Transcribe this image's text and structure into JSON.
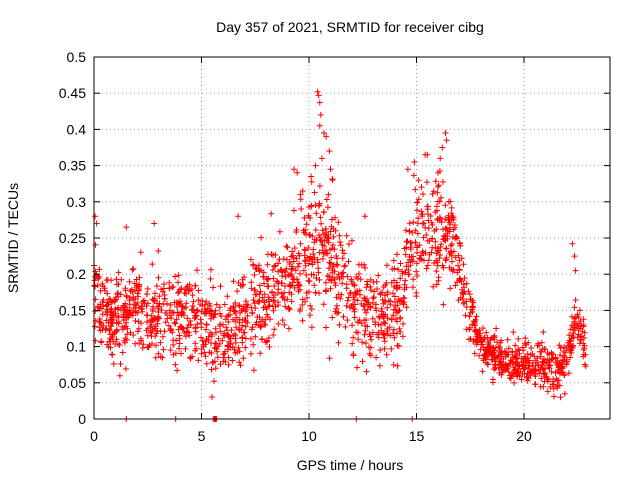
{
  "chart_data": {
    "type": "scatter",
    "marker": "plus",
    "title": "Day 357 of 2021, SRMTID for receiver cibg",
    "xlabel": "GPS time / hours",
    "ylabel": "SRMTID / TECUs",
    "xlim": [
      0,
      24
    ],
    "ylim": [
      0,
      0.5
    ],
    "xticks": [
      0,
      5,
      10,
      15,
      20
    ],
    "xtick_labels": [
      "0",
      "5",
      "10",
      "15",
      "20"
    ],
    "yticks": [
      0,
      0.05,
      0.1,
      0.15,
      0.2,
      0.25,
      0.3,
      0.35,
      0.4,
      0.45,
      0.5
    ],
    "ytick_labels": [
      "0",
      "0.05",
      "0.1",
      "0.15",
      "0.2",
      "0.25",
      "0.3",
      "0.35",
      "0.4",
      "0.45",
      "0.5"
    ],
    "grid": true,
    "series_color": "#ff0000",
    "mean_profile": {
      "x": [
        0,
        0.3,
        1,
        2,
        3,
        4,
        5,
        6,
        7,
        8,
        9,
        10,
        10.5,
        11,
        12,
        13,
        14,
        15,
        16,
        16.8,
        17.5,
        18,
        19,
        20,
        21,
        21.5,
        22,
        22.4,
        22.9
      ],
      "y": [
        0.19,
        0.17,
        0.13,
        0.15,
        0.14,
        0.14,
        0.13,
        0.11,
        0.14,
        0.17,
        0.19,
        0.22,
        0.24,
        0.23,
        0.16,
        0.15,
        0.15,
        0.25,
        0.27,
        0.24,
        0.14,
        0.1,
        0.08,
        0.08,
        0.07,
        0.07,
        0.08,
        0.14,
        0.1
      ]
    },
    "spread_profile": {
      "x": [
        0,
        5,
        9,
        10,
        11,
        12,
        14.5,
        15,
        16.5,
        17,
        18,
        23
      ],
      "y": [
        0.04,
        0.04,
        0.05,
        0.06,
        0.06,
        0.045,
        0.045,
        0.05,
        0.05,
        0.035,
        0.02,
        0.02
      ]
    },
    "point_count": 1900,
    "random_seed": 357,
    "extreme_points": [
      {
        "x": 0.05,
        "y": 0.28
      },
      {
        "x": 0.12,
        "y": 0.27
      },
      {
        "x": 1.5,
        "y": 0.265
      },
      {
        "x": 2.8,
        "y": 0.27
      },
      {
        "x": 6.7,
        "y": 0.28
      },
      {
        "x": 9.3,
        "y": 0.345
      },
      {
        "x": 9.45,
        "y": 0.34
      },
      {
        "x": 9.6,
        "y": 0.31
      },
      {
        "x": 10.4,
        "y": 0.452
      },
      {
        "x": 10.45,
        "y": 0.447
      },
      {
        "x": 10.5,
        "y": 0.437
      },
      {
        "x": 10.55,
        "y": 0.42
      },
      {
        "x": 10.5,
        "y": 0.405
      },
      {
        "x": 10.7,
        "y": 0.395
      },
      {
        "x": 10.8,
        "y": 0.39
      },
      {
        "x": 10.95,
        "y": 0.37
      },
      {
        "x": 10.3,
        "y": 0.35
      },
      {
        "x": 10.6,
        "y": 0.36
      },
      {
        "x": 11.0,
        "y": 0.345
      },
      {
        "x": 11.1,
        "y": 0.33
      },
      {
        "x": 10.1,
        "y": 0.335
      },
      {
        "x": 10.9,
        "y": 0.31
      },
      {
        "x": 12.6,
        "y": 0.28
      },
      {
        "x": 14.6,
        "y": 0.345
      },
      {
        "x": 14.9,
        "y": 0.355
      },
      {
        "x": 15.4,
        "y": 0.365
      },
      {
        "x": 15.5,
        "y": 0.365
      },
      {
        "x": 15.1,
        "y": 0.33
      },
      {
        "x": 16.0,
        "y": 0.34
      },
      {
        "x": 16.2,
        "y": 0.375
      },
      {
        "x": 16.35,
        "y": 0.395
      },
      {
        "x": 16.4,
        "y": 0.385
      },
      {
        "x": 16.1,
        "y": 0.36
      },
      {
        "x": 16.5,
        "y": 0.3
      },
      {
        "x": 22.25,
        "y": 0.242
      },
      {
        "x": 22.35,
        "y": 0.225
      },
      {
        "x": 22.4,
        "y": 0.205
      },
      {
        "x": 22.6,
        "y": 0.15
      },
      {
        "x": 18.7,
        "y": 0.125
      },
      {
        "x": 19.5,
        "y": 0.12
      },
      {
        "x": 20.9,
        "y": 0.12
      },
      {
        "x": 21.7,
        "y": 0.03
      },
      {
        "x": 21.9,
        "y": 0.035
      }
    ],
    "zero_points": [
      {
        "x": 1.5,
        "y": 0
      },
      {
        "x": 3.8,
        "y": 0
      },
      {
        "x": 5.55,
        "y": 0
      },
      {
        "x": 5.6,
        "y": 0
      },
      {
        "x": 5.65,
        "y": 0
      },
      {
        "x": 5.7,
        "y": 0
      },
      {
        "x": 12.2,
        "y": 0
      },
      {
        "x": 14.8,
        "y": 0
      }
    ]
  }
}
